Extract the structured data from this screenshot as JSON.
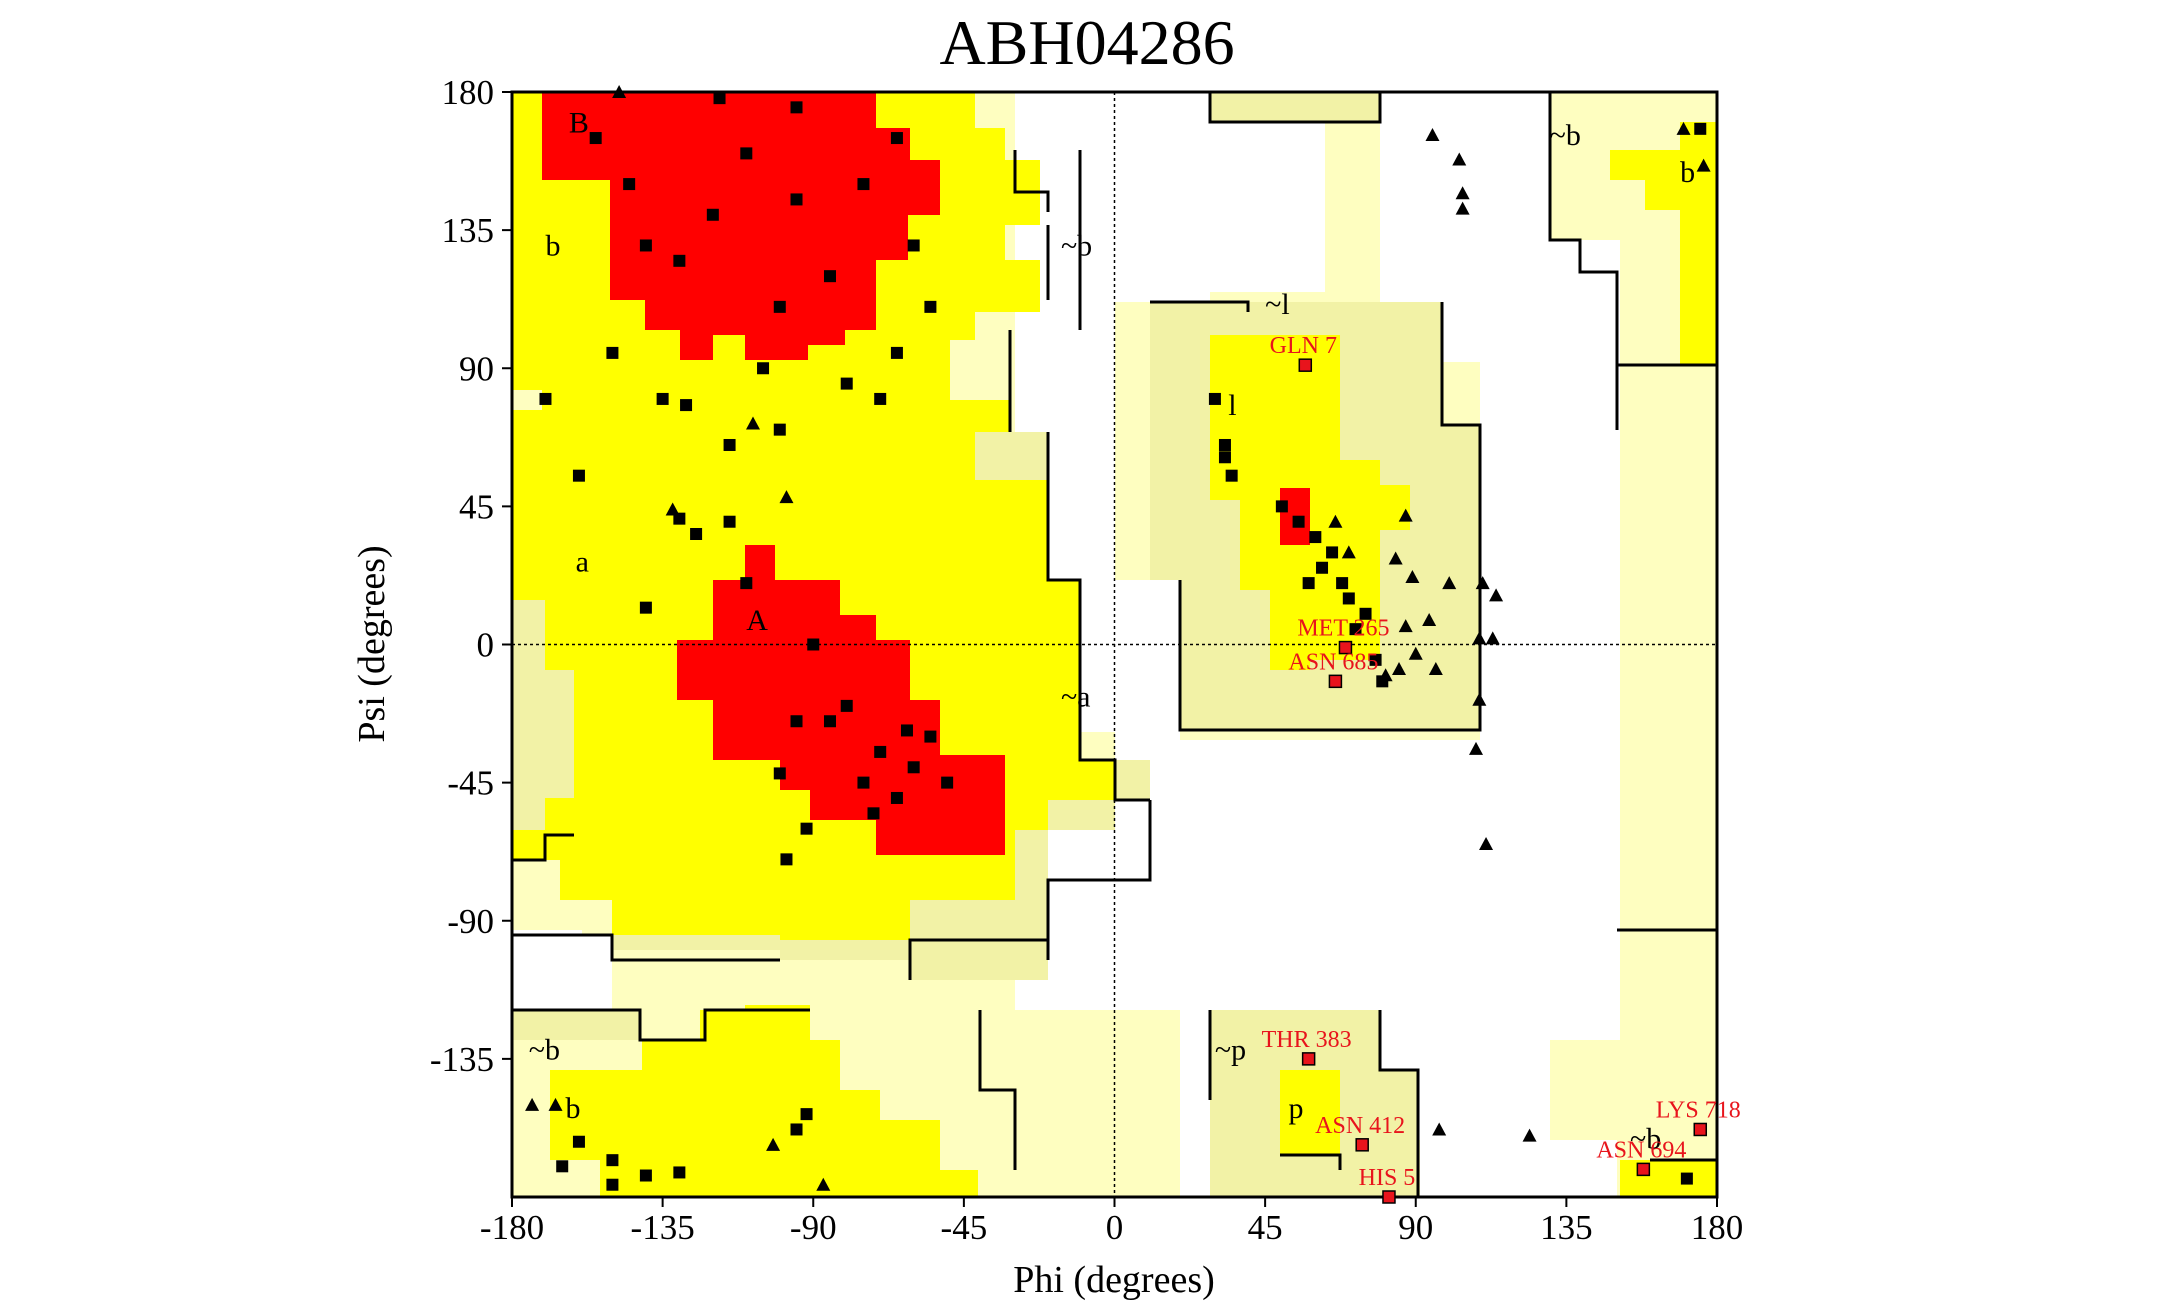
{
  "chart_data": {
    "type": "scatter",
    "title": "ABH04286",
    "xlabel": "Phi (degrees)",
    "ylabel": "Psi (degrees)",
    "xlim": [
      -180,
      180
    ],
    "ylim": [
      -180,
      180
    ],
    "xticks": [
      "-180",
      "-135",
      "-90",
      "-45",
      "0",
      "45",
      "90",
      "135",
      "180"
    ],
    "yticks": [
      "180",
      "135",
      "90",
      "45",
      "0",
      "-45",
      "-90",
      "-135"
    ],
    "colors": {
      "core": "#ff0000",
      "allowed": "#ffff00",
      "generous": "#f2f2a6",
      "outer": "#fefec0",
      "point": "#000000",
      "outlier": "#e8141c"
    },
    "region_labels": [
      {
        "text": "B",
        "phi": -163,
        "psi": 170
      },
      {
        "text": "b",
        "phi": -170,
        "psi": 130
      },
      {
        "text": "a",
        "phi": -161,
        "psi": 27
      },
      {
        "text": "A",
        "phi": -110,
        "psi": 8
      },
      {
        "text": "~b",
        "phi": -16,
        "psi": 130
      },
      {
        "text": "~a",
        "phi": -16,
        "psi": -17
      },
      {
        "text": "~l",
        "phi": 45,
        "psi": 111
      },
      {
        "text": "l",
        "phi": 34,
        "psi": 78
      },
      {
        "text": "~b",
        "phi": 130,
        "psi": 166
      },
      {
        "text": "b",
        "phi": 169,
        "psi": 154
      },
      {
        "text": "~b",
        "phi": -175,
        "psi": -132
      },
      {
        "text": "b",
        "phi": -164,
        "psi": -151
      },
      {
        "text": "~p",
        "phi": 30,
        "psi": -132
      },
      {
        "text": "p",
        "phi": 52,
        "psi": -151
      },
      {
        "text": "~b",
        "phi": 154,
        "psi": -161
      }
    ],
    "outliers": [
      {
        "label": "GLN 7",
        "phi": 57,
        "psi": 91
      },
      {
        "label": "MET 265",
        "phi": 69,
        "psi": -1
      },
      {
        "label": "ASN 685",
        "phi": 66,
        "psi": -12
      },
      {
        "label": "THR 383",
        "phi": 58,
        "psi": -135
      },
      {
        "label": "ASN 412",
        "phi": 74,
        "psi": -163
      },
      {
        "label": "HIS 5",
        "phi": 82,
        "psi": -180
      },
      {
        "label": "LYS 718",
        "phi": 175,
        "psi": -158
      },
      {
        "label": "ASN 694",
        "phi": 158,
        "psi": -171
      }
    ],
    "glycine_points": [
      [
        -148,
        180
      ],
      [
        -108,
        72
      ],
      [
        -98,
        48
      ],
      [
        -174,
        -150
      ],
      [
        -167,
        -150
      ],
      [
        -102,
        -163
      ],
      [
        -87,
        -176
      ],
      [
        -132,
        44
      ],
      [
        95,
        166
      ],
      [
        103,
        158
      ],
      [
        104,
        147
      ],
      [
        104,
        142
      ],
      [
        100,
        20
      ],
      [
        110,
        20
      ],
      [
        114,
        16
      ],
      [
        109,
        2
      ],
      [
        113,
        2
      ],
      [
        109,
        -18
      ],
      [
        108,
        -34
      ],
      [
        111,
        -65
      ],
      [
        87,
        42
      ],
      [
        84,
        28
      ],
      [
        89,
        22
      ],
      [
        94,
        8
      ],
      [
        87,
        6
      ],
      [
        90,
        -3
      ],
      [
        96,
        -8
      ],
      [
        85,
        -8
      ],
      [
        81,
        -10
      ],
      [
        97,
        -158
      ],
      [
        124,
        -160
      ],
      [
        170,
        168
      ],
      [
        176,
        156
      ],
      [
        70,
        30
      ],
      [
        66,
        40
      ]
    ],
    "residue_points": [
      [
        -110,
        160
      ],
      [
        -95,
        145
      ],
      [
        -75,
        150
      ],
      [
        -120,
        140
      ],
      [
        -85,
        120
      ],
      [
        -60,
        130
      ],
      [
        -130,
        125
      ],
      [
        -100,
        110
      ],
      [
        -145,
        150
      ],
      [
        -65,
        165
      ],
      [
        -155,
        165
      ],
      [
        -118,
        178
      ],
      [
        -140,
        130
      ],
      [
        -55,
        110
      ],
      [
        -95,
        175
      ],
      [
        -105,
        90
      ],
      [
        -80,
        85
      ],
      [
        -65,
        95
      ],
      [
        -128,
        78
      ],
      [
        -135,
        80
      ],
      [
        -170,
        80
      ],
      [
        -150,
        95
      ],
      [
        -115,
        65
      ],
      [
        -100,
        70
      ],
      [
        -70,
        80
      ],
      [
        -130,
        41
      ],
      [
        -125,
        36
      ],
      [
        -115,
        40
      ],
      [
        -110,
        20
      ],
      [
        -140,
        12
      ],
      [
        -160,
        55
      ],
      [
        -90,
        0
      ],
      [
        -80,
        -20
      ],
      [
        -70,
        -35
      ],
      [
        -60,
        -40
      ],
      [
        -65,
        -50
      ],
      [
        -55,
        -30
      ],
      [
        -75,
        -45
      ],
      [
        -85,
        -25
      ],
      [
        -50,
        -45
      ],
      [
        -95,
        -25
      ],
      [
        -100,
        -42
      ],
      [
        -92,
        -60
      ],
      [
        -72,
        -55
      ],
      [
        -62,
        -28
      ],
      [
        -98,
        -70
      ],
      [
        -165,
        -170
      ],
      [
        -150,
        -176
      ],
      [
        -160,
        -162
      ],
      [
        -140,
        -173
      ],
      [
        -130,
        -172
      ],
      [
        -150,
        -168
      ],
      [
        -95,
        -158
      ],
      [
        -92,
        -153
      ],
      [
        30,
        80
      ],
      [
        33,
        65
      ],
      [
        33,
        61
      ],
      [
        35,
        55
      ],
      [
        50,
        45
      ],
      [
        55,
        40
      ],
      [
        60,
        35
      ],
      [
        65,
        30
      ],
      [
        62,
        25
      ],
      [
        58,
        20
      ],
      [
        70,
        15
      ],
      [
        75,
        10
      ],
      [
        72,
        5
      ],
      [
        78,
        -5
      ],
      [
        80,
        -12
      ],
      [
        68,
        20
      ],
      [
        171,
        -174
      ],
      [
        175,
        168
      ]
    ]
  }
}
